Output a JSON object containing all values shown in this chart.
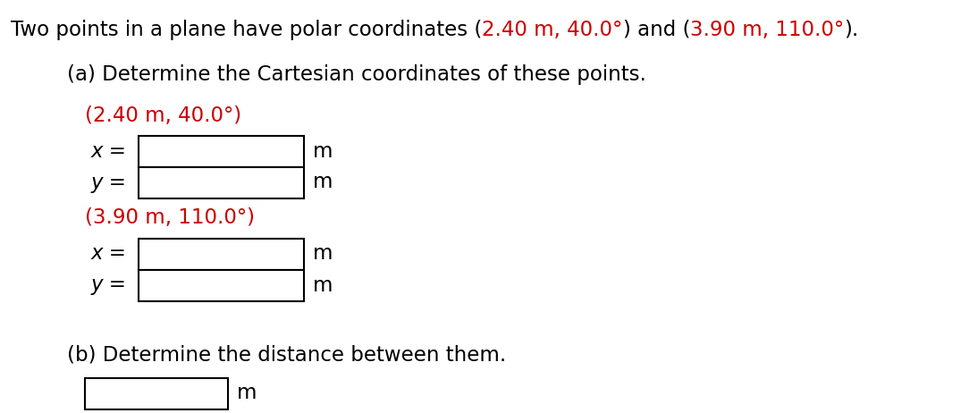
{
  "black": "#000000",
  "red": "#cc0000",
  "bg": "#ffffff",
  "fs_title": 16.5,
  "fs_body": 16.5,
  "fs_italic": 16.5,
  "title_segments": [
    [
      "Two points in a plane have polar coordinates (",
      "black"
    ],
    [
      "2.40 m, 40.0°",
      "red"
    ],
    [
      ") and (",
      "black"
    ],
    [
      "3.90 m, 110.0°",
      "red"
    ],
    [
      ").",
      "black"
    ]
  ],
  "part_a": "(a) Determine the Cartesian coordinates of these points.",
  "label1": "(2.40 m, 40.0°)",
  "label2": "(3.90 m, 110.0°)",
  "part_b": "(b) Determine the distance between them."
}
